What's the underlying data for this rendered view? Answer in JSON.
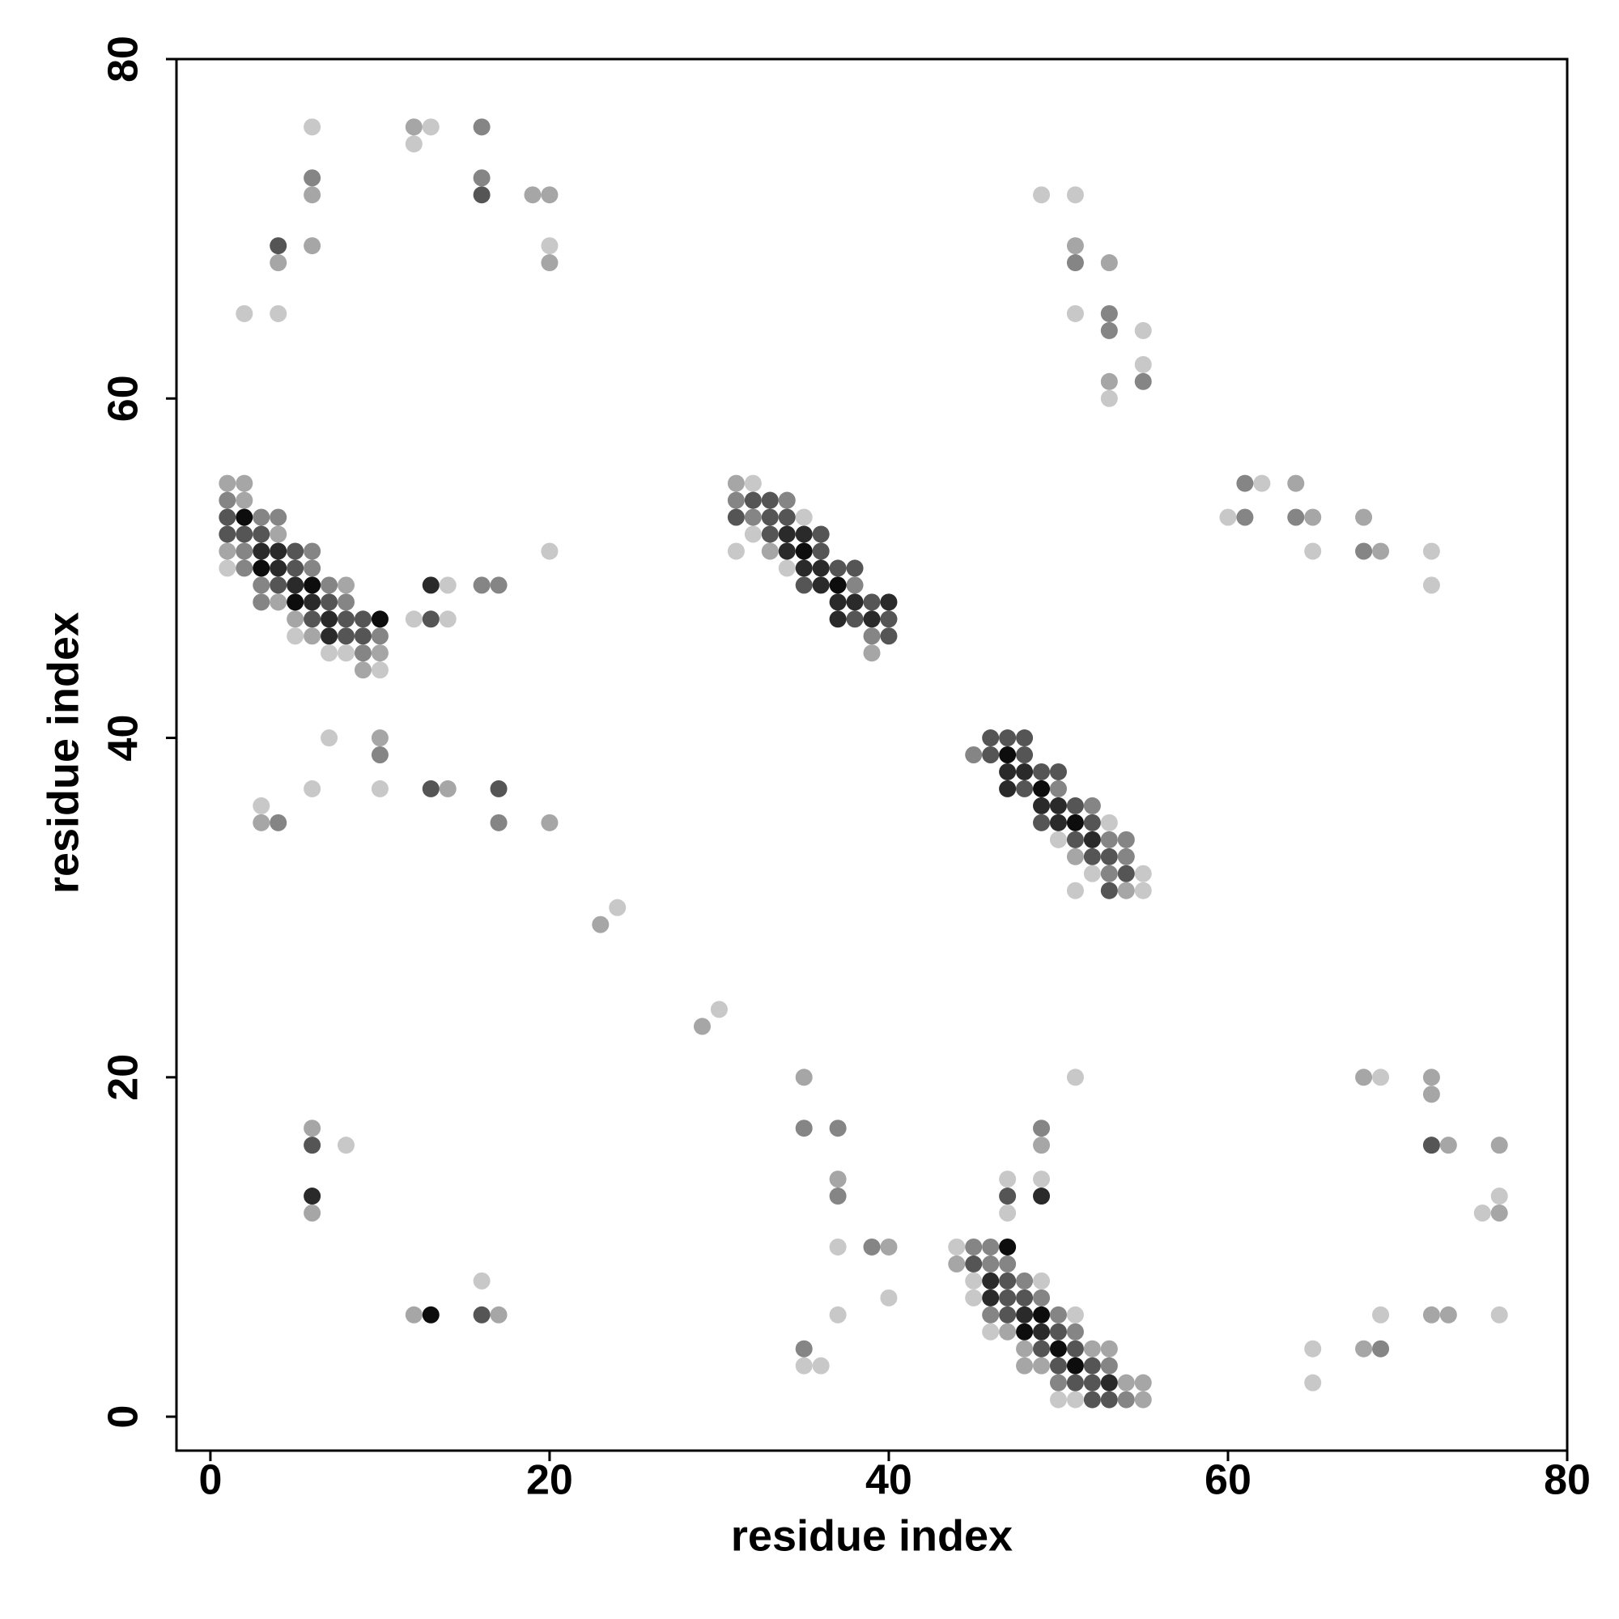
{
  "chart_data": {
    "type": "scatter",
    "x_label": "residue index",
    "y_label": "residue index",
    "xlim": [
      -2,
      80
    ],
    "ylim": [
      -2,
      80
    ],
    "xticks": [
      0,
      20,
      40,
      60,
      80
    ],
    "yticks": [
      0,
      20,
      40,
      60,
      80
    ],
    "grid": false,
    "series": [
      {
        "color": "#c8c8c8",
        "x": [
          1,
          5,
          7,
          8,
          10,
          6,
          13,
          12,
          20,
          2,
          4,
          14,
          12,
          14,
          20,
          7,
          6,
          10,
          3,
          24,
          30,
          32,
          35,
          32,
          31,
          34,
          49,
          51,
          51,
          55,
          55,
          53,
          62,
          60,
          65,
          72,
          72,
          53,
          50,
          52,
          55,
          51,
          55,
          8,
          16,
          37,
          40,
          37,
          35,
          36,
          47,
          47,
          49,
          51,
          44,
          45,
          49,
          45,
          51,
          46,
          50,
          51,
          69,
          76,
          75,
          69,
          76,
          65,
          65
        ],
        "y": [
          50,
          46,
          45,
          45,
          44,
          76,
          76,
          75,
          69,
          65,
          65,
          49,
          47,
          47,
          51,
          40,
          37,
          37,
          36,
          30,
          24,
          55,
          53,
          52,
          51,
          50,
          72,
          72,
          65,
          64,
          62,
          60,
          55,
          53,
          51,
          51,
          49,
          35,
          34,
          32,
          32,
          31,
          31,
          16,
          8,
          10,
          7,
          6,
          3,
          3,
          14,
          12,
          14,
          20,
          10,
          8,
          8,
          7,
          6,
          5,
          1,
          1,
          20,
          13,
          12,
          6,
          6,
          4,
          2
        ]
      },
      {
        "color": "#a6a6a6",
        "x": [
          1,
          2,
          2,
          4,
          1,
          8,
          4,
          5,
          6,
          10,
          9,
          12,
          6,
          19,
          20,
          4,
          6,
          20,
          10,
          14,
          3,
          20,
          23,
          29,
          31,
          33,
          39,
          51,
          53,
          53,
          64,
          65,
          68,
          69,
          51,
          54,
          6,
          6,
          12,
          17,
          35,
          37,
          40,
          49,
          44,
          47,
          48,
          52,
          53,
          48,
          49,
          54,
          55,
          55,
          68,
          72,
          72,
          73,
          76,
          76,
          72,
          73,
          68
        ],
        "y": [
          55,
          55,
          54,
          52,
          51,
          49,
          48,
          47,
          46,
          45,
          44,
          76,
          72,
          72,
          72,
          68,
          69,
          68,
          40,
          37,
          35,
          35,
          29,
          23,
          55,
          51,
          45,
          69,
          68,
          61,
          55,
          53,
          53,
          51,
          33,
          31,
          17,
          12,
          6,
          6,
          20,
          14,
          10,
          16,
          9,
          5,
          4,
          4,
          4,
          3,
          3,
          2,
          2,
          1,
          20,
          20,
          19,
          16,
          16,
          12,
          6,
          6,
          4
        ]
      },
      {
        "color": "#858585",
        "x": [
          1,
          3,
          4,
          2,
          6,
          2,
          6,
          3,
          7,
          3,
          8,
          10,
          9,
          16,
          6,
          16,
          16,
          17,
          10,
          17,
          4,
          31,
          34,
          32,
          38,
          39,
          51,
          53,
          53,
          55,
          61,
          61,
          64,
          68,
          45,
          50,
          52,
          53,
          54,
          54,
          53,
          35,
          37,
          37,
          39,
          35,
          49,
          45,
          46,
          46,
          47,
          48,
          49,
          46,
          50,
          51,
          53,
          50,
          54,
          69
        ],
        "y": [
          54,
          53,
          53,
          51,
          51,
          50,
          50,
          49,
          49,
          48,
          48,
          46,
          45,
          76,
          73,
          73,
          49,
          49,
          39,
          35,
          35,
          54,
          54,
          53,
          49,
          46,
          68,
          65,
          64,
          61,
          55,
          53,
          53,
          51,
          39,
          37,
          36,
          34,
          34,
          33,
          32,
          17,
          17,
          13,
          10,
          4,
          17,
          10,
          10,
          9,
          9,
          8,
          7,
          6,
          6,
          5,
          3,
          2,
          1,
          4
        ]
      },
      {
        "color": "#555555",
        "x": [
          1,
          1,
          2,
          3,
          5,
          5,
          4,
          7,
          6,
          8,
          9,
          8,
          9,
          16,
          4,
          13,
          13,
          17,
          32,
          33,
          31,
          33,
          34,
          33,
          36,
          36,
          37,
          38,
          35,
          39,
          38,
          40,
          40,
          46,
          47,
          48,
          46,
          48,
          49,
          50,
          48,
          51,
          49,
          52,
          51,
          52,
          53,
          54,
          53,
          6,
          16,
          47,
          45,
          47,
          47,
          48,
          47,
          50,
          49,
          51,
          50,
          52,
          51,
          52,
          52,
          53,
          72
        ],
        "y": [
          53,
          52,
          52,
          52,
          51,
          50,
          49,
          48,
          47,
          47,
          47,
          46,
          46,
          72,
          69,
          47,
          37,
          37,
          54,
          54,
          53,
          53,
          53,
          52,
          52,
          51,
          50,
          50,
          49,
          48,
          47,
          47,
          46,
          40,
          40,
          40,
          39,
          39,
          38,
          38,
          37,
          36,
          35,
          35,
          34,
          33,
          33,
          32,
          31,
          16,
          6,
          13,
          9,
          8,
          7,
          7,
          6,
          5,
          4,
          4,
          3,
          3,
          2,
          2,
          1,
          1,
          16
        ]
      },
      {
        "color": "#2a2a2a",
        "x": [
          3,
          4,
          4,
          5,
          6,
          7,
          7,
          13,
          34,
          35,
          34,
          35,
          36,
          36,
          37,
          38,
          40,
          37,
          39,
          47,
          48,
          47,
          49,
          50,
          50,
          52,
          6,
          49,
          46,
          46,
          48,
          49,
          53
        ],
        "y": [
          51,
          51,
          50,
          49,
          48,
          47,
          46,
          49,
          52,
          52,
          51,
          50,
          50,
          49,
          48,
          48,
          48,
          47,
          47,
          38,
          38,
          37,
          36,
          36,
          35,
          34,
          13,
          13,
          8,
          7,
          6,
          5,
          2
        ]
      },
      {
        "color": "#0d0d0d",
        "x": [
          2,
          3,
          6,
          5,
          10,
          35,
          37,
          47,
          49,
          51,
          13,
          47,
          49,
          48,
          50,
          51
        ],
        "y": [
          53,
          50,
          49,
          48,
          47,
          51,
          49,
          39,
          37,
          35,
          6,
          10,
          6,
          5,
          4,
          3
        ]
      }
    ]
  }
}
